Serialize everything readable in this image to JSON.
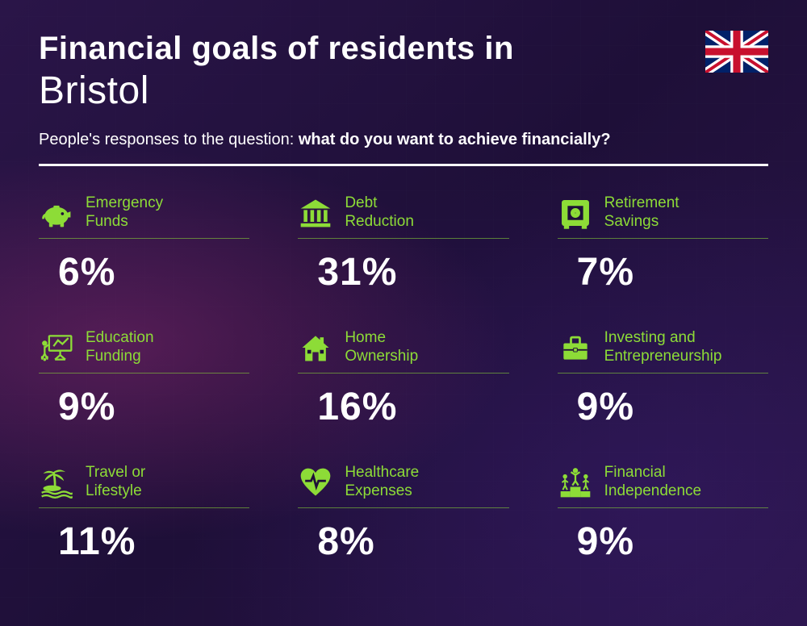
{
  "header": {
    "title_line1": "Financial goals of residents in",
    "title_line2": "Bristol",
    "subtitle_prefix": "People's responses to the question: ",
    "subtitle_bold": "what do you want to achieve financially?"
  },
  "styling": {
    "accent_color": "#8ddc37",
    "text_color": "#ffffff",
    "background_base": "#1e0f38",
    "title_fontsize_pt": 40,
    "city_fontsize_pt": 48,
    "subtitle_fontsize_pt": 20,
    "label_fontsize_pt": 19,
    "value_fontsize_pt": 48,
    "divider_color": "#ffffff",
    "item_underline_color": "rgba(141,220,55,0.55)",
    "grid_columns": 3,
    "grid_rows": 3
  },
  "flag": {
    "country": "United Kingdom"
  },
  "items": [
    {
      "icon": "piggy-bank-icon",
      "label": "Emergency\nFunds",
      "value": "6%"
    },
    {
      "icon": "bank-icon",
      "label": "Debt\nReduction",
      "value": "31%"
    },
    {
      "icon": "safe-icon",
      "label": "Retirement\nSavings",
      "value": "7%"
    },
    {
      "icon": "presentation-icon",
      "label": "Education\nFunding",
      "value": "9%"
    },
    {
      "icon": "house-icon",
      "label": "Home\nOwnership",
      "value": "16%"
    },
    {
      "icon": "briefcase-icon",
      "label": "Investing and\nEntrepreneurship",
      "value": "9%"
    },
    {
      "icon": "palm-tree-icon",
      "label": "Travel or\nLifestyle",
      "value": "11%"
    },
    {
      "icon": "heart-pulse-icon",
      "label": "Healthcare\nExpenses",
      "value": "8%"
    },
    {
      "icon": "podium-icon",
      "label": "Financial\nIndependence",
      "value": "9%"
    }
  ]
}
